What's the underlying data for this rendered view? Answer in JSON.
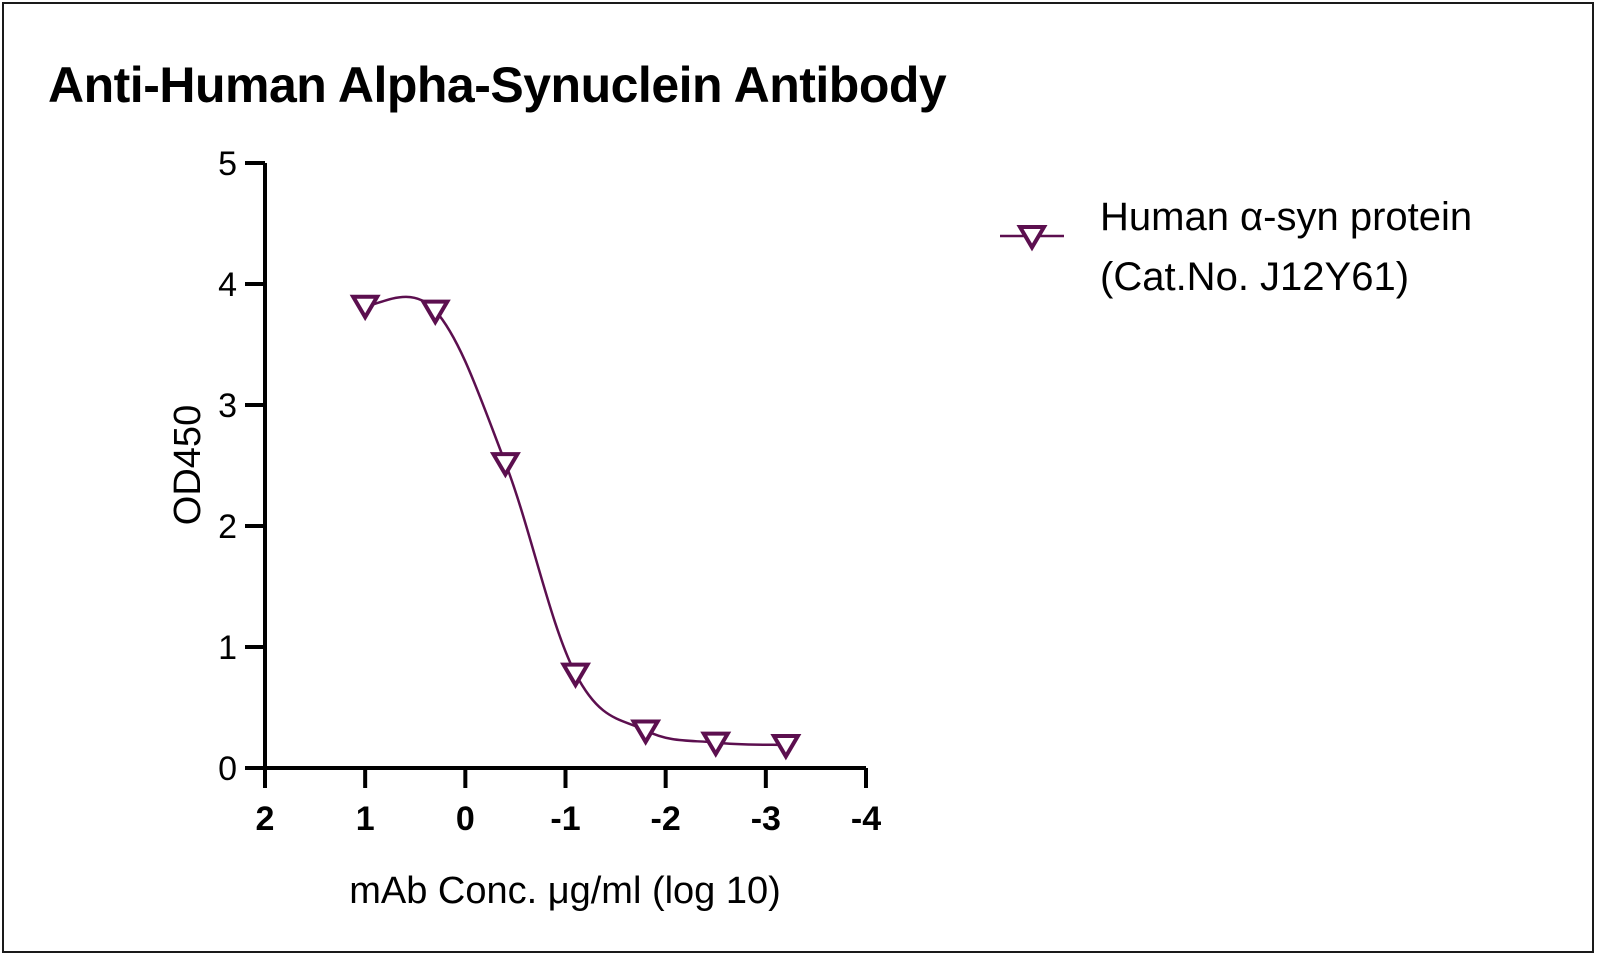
{
  "chart_data": {
    "type": "scatter",
    "title": "Anti-Human Alpha-Synuclein Antibody",
    "xlabel": "mAb Conc. μg/ml (log 10)",
    "ylabel": "OD450",
    "xlim": [
      2,
      -4
    ],
    "ylim": [
      0,
      5
    ],
    "x_reversed": true,
    "x_ticks": [
      "2",
      "1",
      "0",
      "-1",
      "-2",
      "-3",
      "-4"
    ],
    "y_ticks": [
      "0",
      "1",
      "2",
      "3",
      "4",
      "5"
    ],
    "grid": false,
    "legend_position": "top-right",
    "series": [
      {
        "name_lines": [
          "Human α-syn protein",
          "(Cat.No. J12Y61)"
        ],
        "color": "#5c0f4f",
        "marker": "triangle-down-open",
        "fit": "four-parameter-logistic-curve",
        "points": [
          {
            "x": 1.0,
            "y": 3.82
          },
          {
            "x": 0.3,
            "y": 3.78
          },
          {
            "x": -0.4,
            "y": 2.52
          },
          {
            "x": -1.1,
            "y": 0.78
          },
          {
            "x": -1.8,
            "y": 0.31
          },
          {
            "x": -2.5,
            "y": 0.21
          },
          {
            "x": -3.2,
            "y": 0.19
          }
        ]
      }
    ]
  }
}
